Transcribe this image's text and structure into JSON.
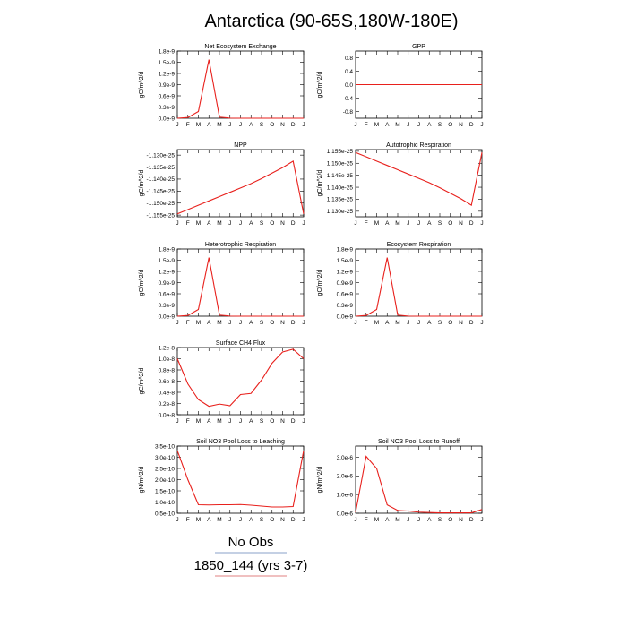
{
  "title": "Antarctica (90-65S,180W-180E)",
  "legend": {
    "entries": [
      {
        "label": "No Obs",
        "color": "#8aa0c8"
      },
      {
        "label": "1850_144 (yrs 3-7)",
        "color": "#e08080"
      }
    ]
  },
  "style": {
    "line_color": "#e8201c",
    "frame_color": "#000000"
  },
  "chart_data": [
    {
      "type": "line",
      "title": "Net Ecosystem Exchange",
      "ylabel": "gC/m^2/d",
      "categories": [
        "J",
        "F",
        "M",
        "A",
        "M",
        "J",
        "J",
        "A",
        "S",
        "O",
        "N",
        "D",
        "J"
      ],
      "ylim": [
        0,
        1.8e-09
      ],
      "yticks": [
        0,
        3e-10,
        6e-10,
        9e-10,
        1.2e-09,
        1.5e-09,
        1.8e-09
      ],
      "ytick_labels": [
        "0.0e-9",
        "0.3e-9",
        "0.6e-9",
        "0.9e-9",
        "1.2e-9",
        "1.5e-9",
        "1.8e-9"
      ],
      "series": [
        {
          "values": [
            0,
            2e-11,
            1.8e-10,
            1.57e-09,
            3e-11,
            3e-12,
            0,
            0,
            0,
            0,
            0,
            0,
            0
          ]
        }
      ]
    },
    {
      "type": "line",
      "title": "GPP",
      "ylabel": "gC/m^2/d",
      "categories": [
        "J",
        "F",
        "M",
        "A",
        "M",
        "J",
        "J",
        "A",
        "S",
        "O",
        "N",
        "D",
        "J"
      ],
      "ylim": [
        -1,
        1
      ],
      "yticks": [
        -0.8,
        -0.4,
        0,
        0.4,
        0.8
      ],
      "ytick_labels": [
        "-0.8",
        "-0.4",
        "0.0",
        "0.4",
        "0.8"
      ],
      "series": [
        {
          "values": [
            0,
            0,
            0,
            0,
            0,
            0,
            0,
            0,
            0,
            0,
            0,
            0,
            0
          ]
        }
      ]
    },
    {
      "type": "line",
      "title": "NPP",
      "ylabel": "gC/m^2/d",
      "categories": [
        "J",
        "F",
        "M",
        "A",
        "M",
        "J",
        "J",
        "A",
        "S",
        "O",
        "N",
        "D",
        "J"
      ],
      "ylim": [
        -1.1557e-25,
        -1.1277e-25
      ],
      "yticks": [
        -1.155e-25,
        -1.15e-25,
        -1.145e-25,
        -1.14e-25,
        -1.135e-25,
        -1.13e-25
      ],
      "ytick_labels": [
        "-1.155e-25",
        "-1.150e-25",
        "-1.145e-25",
        "-1.140e-25",
        "-1.135e-25",
        "-1.130e-25"
      ],
      "series": [
        {
          "values": [
            -1.1545e-25,
            -1.1527e-25,
            -1.1509e-25,
            -1.1491e-25,
            -1.1473e-25,
            -1.1455e-25,
            -1.1437e-25,
            -1.1419e-25,
            -1.1398e-25,
            -1.1375e-25,
            -1.1352e-25,
            -1.1325e-25,
            -1.1545e-25
          ]
        }
      ]
    },
    {
      "type": "line",
      "title": "Autotrophic Respiration",
      "ylabel": "gC/m^2/d",
      "categories": [
        "J",
        "F",
        "M",
        "A",
        "M",
        "J",
        "J",
        "A",
        "S",
        "O",
        "N",
        "D",
        "J"
      ],
      "ylim": [
        1.1277e-25,
        1.1557e-25
      ],
      "yticks": [
        1.13e-25,
        1.135e-25,
        1.14e-25,
        1.145e-25,
        1.15e-25,
        1.155e-25
      ],
      "ytick_labels": [
        "1.130e-25",
        "1.135e-25",
        "1.140e-25",
        "1.145e-25",
        "1.150e-25",
        "1.155e-25"
      ],
      "series": [
        {
          "values": [
            1.1545e-25,
            1.1527e-25,
            1.1509e-25,
            1.1491e-25,
            1.1473e-25,
            1.1455e-25,
            1.1437e-25,
            1.1419e-25,
            1.1398e-25,
            1.1375e-25,
            1.1352e-25,
            1.1325e-25,
            1.1545e-25
          ]
        }
      ]
    },
    {
      "type": "line",
      "title": "Heterotrophic Respiration",
      "ylabel": "gC/m^2/d",
      "categories": [
        "J",
        "F",
        "M",
        "A",
        "M",
        "J",
        "J",
        "A",
        "S",
        "O",
        "N",
        "D",
        "J"
      ],
      "ylim": [
        0,
        1.8e-09
      ],
      "yticks": [
        0,
        3e-10,
        6e-10,
        9e-10,
        1.2e-09,
        1.5e-09,
        1.8e-09
      ],
      "ytick_labels": [
        "0.0e-9",
        "0.3e-9",
        "0.6e-9",
        "0.9e-9",
        "1.2e-9",
        "1.5e-9",
        "1.8e-9"
      ],
      "series": [
        {
          "values": [
            0,
            2e-11,
            1.8e-10,
            1.57e-09,
            3e-11,
            3e-12,
            0,
            0,
            0,
            0,
            0,
            0,
            0
          ]
        }
      ]
    },
    {
      "type": "line",
      "title": "Ecosystem Respiration",
      "ylabel": "gC/m^2/d",
      "categories": [
        "J",
        "F",
        "M",
        "A",
        "M",
        "J",
        "J",
        "A",
        "S",
        "O",
        "N",
        "D",
        "J"
      ],
      "ylim": [
        0,
        1.8e-09
      ],
      "yticks": [
        0,
        3e-10,
        6e-10,
        9e-10,
        1.2e-09,
        1.5e-09,
        1.8e-09
      ],
      "ytick_labels": [
        "0.0e-9",
        "0.3e-9",
        "0.6e-9",
        "0.9e-9",
        "1.2e-9",
        "1.5e-9",
        "1.8e-9"
      ],
      "series": [
        {
          "values": [
            0,
            2e-11,
            1.8e-10,
            1.57e-09,
            3e-11,
            3e-12,
            0,
            0,
            0,
            0,
            0,
            0,
            0
          ]
        }
      ]
    },
    {
      "type": "line",
      "title": "Surface CH4 Flux",
      "ylabel": "gC/m^2/d",
      "categories": [
        "J",
        "F",
        "M",
        "A",
        "M",
        "J",
        "J",
        "A",
        "S",
        "O",
        "N",
        "D",
        "J"
      ],
      "ylim": [
        0,
        1.2e-08
      ],
      "yticks": [
        0,
        2e-09,
        4e-09,
        6e-09,
        8e-09,
        1e-08,
        1.2e-08
      ],
      "ytick_labels": [
        "0.0e-8",
        "0.2e-8",
        "0.4e-8",
        "0.6e-8",
        "0.8e-8",
        "1.0e-8",
        "1.2e-8"
      ],
      "series": [
        {
          "values": [
            1e-08,
            5.5e-09,
            2.7e-09,
            1.5e-09,
            1.9e-09,
            1.6e-09,
            3.6e-09,
            3.8e-09,
            6.2e-09,
            9.2e-09,
            1.12e-08,
            1.17e-08,
            1e-08
          ]
        }
      ]
    },
    {
      "type": "line",
      "title": "Soil NO3 Pool Loss to Leaching",
      "ylabel": "gN/m^2/d",
      "categories": [
        "J",
        "F",
        "M",
        "A",
        "M",
        "J",
        "J",
        "A",
        "S",
        "O",
        "N",
        "D",
        "J"
      ],
      "ylim": [
        5e-11,
        3.5e-10
      ],
      "yticks": [
        5e-11,
        1e-10,
        1.5e-10,
        2e-10,
        2.5e-10,
        3e-10,
        3.5e-10
      ],
      "ytick_labels": [
        "0.5e-10",
        "1.0e-10",
        "1.5e-10",
        "2.0e-10",
        "2.5e-10",
        "3.0e-10",
        "3.5e-10"
      ],
      "series": [
        {
          "values": [
            3.3e-10,
            2e-10,
            8.8e-11,
            8.7e-11,
            8.8e-11,
            8.8e-11,
            8.9e-11,
            8.6e-11,
            8.2e-11,
            7.8e-11,
            7.8e-11,
            8e-11,
            3.3e-10
          ]
        }
      ]
    },
    {
      "type": "line",
      "title": "Soil NO3 Pool Loss to Runoff",
      "ylabel": "gN/m^2/d",
      "categories": [
        "J",
        "F",
        "M",
        "A",
        "M",
        "J",
        "J",
        "A",
        "S",
        "O",
        "N",
        "D",
        "J"
      ],
      "ylim": [
        0,
        3.6e-06
      ],
      "yticks": [
        0,
        1e-06,
        2e-06,
        3e-06
      ],
      "ytick_labels": [
        "0.0e-6",
        "1.0e-6",
        "2.0e-6",
        "3.0e-6"
      ],
      "series": [
        {
          "values": [
            5e-08,
            3.05e-06,
            2.4e-06,
            4.5e-07,
            1.5e-07,
            1.2e-07,
            6e-08,
            4e-08,
            2e-08,
            2e-08,
            2e-08,
            2e-08,
            2e-07
          ]
        }
      ]
    }
  ]
}
